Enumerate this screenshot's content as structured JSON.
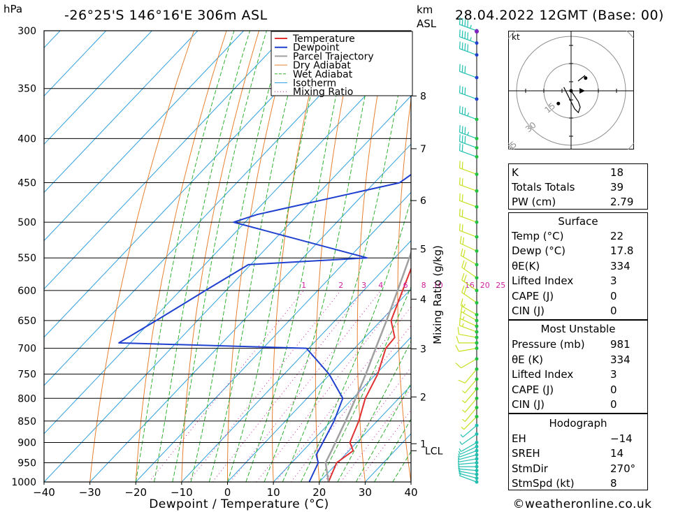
{
  "header": {
    "unit_hpa": "hPa",
    "location": "-26°25'S 146°16'E 306m ASL",
    "km": "km",
    "asl": "ASL",
    "datetime": "28.04.2022 12GMT (Base: 00)"
  },
  "footer": {
    "copyright": "©weatheronline.co.uk"
  },
  "colors": {
    "temperature": "#e03030",
    "dewpoint": "#2040d0",
    "parcel": "#a0a0a0",
    "dry_adiabat": "#e88030",
    "wet_adiabat": "#30b030",
    "isotherm": "#30a0e0",
    "mixing_ratio": "#d020a0",
    "wind_low": "#c8e020",
    "wind_high": "#20c0b0",
    "hodo_marker": "#8020c0"
  },
  "chart_data": {
    "type": "line",
    "xlabel": "Dewpoint / Temperature (°C)",
    "ylabel": "hPa",
    "xlim": [
      -40,
      40
    ],
    "ylim": [
      1000,
      300
    ],
    "y_scale": "log-pressure",
    "skew": "skew-T",
    "x_ticks": [
      -40,
      -30,
      -20,
      -10,
      0,
      10,
      20,
      30,
      40
    ],
    "x_tick_labels": [
      "−40",
      "−30",
      "−20",
      "−10",
      "0",
      "10",
      "20",
      "30",
      "40"
    ],
    "pressure_ticks": [
      300,
      350,
      400,
      450,
      500,
      550,
      600,
      650,
      700,
      750,
      800,
      850,
      900,
      950,
      1000
    ],
    "km_axis": {
      "ticks": [
        "1",
        "2",
        "3",
        "4",
        "5",
        "6",
        "7",
        "8"
      ],
      "pressures": [
        903,
        797,
        701,
        614,
        537,
        472,
        411,
        357
      ],
      "lcl_label": "LCL",
      "lcl_pressure": 920
    },
    "mixing_ratio_axis_label": "Mixing Ratio (g/kg)",
    "mixing_ratio_labels": [
      "1",
      "2",
      "3",
      "4",
      "6",
      "8",
      "10",
      "16",
      "20",
      "25"
    ],
    "legend": {
      "position": "top-right",
      "entries": [
        "Temperature",
        "Dewpoint",
        "Parcel Trajectory",
        "Dry Adiabat",
        "Wet Adiabat",
        "Isotherm",
        "Mixing Ratio"
      ]
    },
    "series": [
      {
        "name": "Temperature",
        "points": [
          [
            1000,
            22
          ],
          [
            950,
            19.8
          ],
          [
            920,
            20.9
          ],
          [
            900,
            18.5
          ],
          [
            850,
            16
          ],
          [
            800,
            12.7
          ],
          [
            750,
            10.4
          ],
          [
            700,
            6.8
          ],
          [
            680,
            6.5
          ],
          [
            650,
            2.2
          ],
          [
            600,
            -1.5
          ],
          [
            550,
            -5.5
          ],
          [
            500,
            -10.5
          ],
          [
            450,
            -16.8
          ],
          [
            420,
            -21.5
          ],
          [
            400,
            -23.8
          ],
          [
            350,
            -32
          ],
          [
            300,
            -40
          ]
        ]
      },
      {
        "name": "Dewpoint",
        "points": [
          [
            1000,
            17.8
          ],
          [
            950,
            15.8
          ],
          [
            930,
            13.7
          ],
          [
            900,
            12.6
          ],
          [
            850,
            10.6
          ],
          [
            800,
            7.8
          ],
          [
            750,
            -0.2
          ],
          [
            700,
            -10.5
          ],
          [
            690,
            -52.5
          ],
          [
            650,
            -49
          ],
          [
            600,
            -44.5
          ],
          [
            560,
            -40.5
          ],
          [
            550,
            -16
          ],
          [
            500,
            -52.5
          ],
          [
            490,
            -49
          ],
          [
            450,
            -24.5
          ],
          [
            430,
            -22.8
          ],
          [
            405,
            -29
          ],
          [
            400,
            -29.5
          ],
          [
            350,
            -33
          ],
          [
            300,
            -48
          ]
        ]
      },
      {
        "name": "Parcel Trajectory",
        "points": [
          [
            1000,
            22
          ],
          [
            950,
            17.4
          ],
          [
            920,
            16.2
          ],
          [
            850,
            13.1
          ],
          [
            800,
            10.6
          ],
          [
            750,
            7.8
          ],
          [
            700,
            4.6
          ],
          [
            650,
            1.2
          ],
          [
            600,
            -2.6
          ],
          [
            550,
            -6.8
          ],
          [
            500,
            -11.6
          ],
          [
            450,
            -17.3
          ],
          [
            400,
            -24.1
          ],
          [
            350,
            -32.3
          ],
          [
            300,
            -42
          ]
        ]
      }
    ],
    "wind_barbs": {
      "units": "kt",
      "pressures": [
        1000,
        990,
        980,
        970,
        960,
        950,
        940,
        930,
        920,
        910,
        900,
        880,
        860,
        840,
        820,
        800,
        780,
        760,
        740,
        720,
        700,
        690,
        680,
        670,
        660,
        650,
        640,
        620,
        600,
        580,
        560,
        540,
        520,
        500,
        480,
        460,
        440,
        420,
        410,
        400,
        380,
        360,
        340,
        320,
        310,
        300
      ],
      "directions": [
        250,
        255,
        260,
        265,
        270,
        275,
        280,
        285,
        290,
        295,
        300,
        305,
        310,
        315,
        320,
        320,
        320,
        320,
        320,
        300,
        280,
        270,
        260,
        250,
        245,
        240,
        240,
        235,
        235,
        235,
        240,
        245,
        250,
        250,
        250,
        250,
        250,
        250,
        250,
        250,
        250,
        250,
        250,
        250,
        250,
        250
      ],
      "speeds": [
        5,
        5,
        5,
        5,
        5,
        5,
        5,
        5,
        5,
        5,
        5,
        5,
        5,
        5,
        5,
        5,
        5,
        5,
        10,
        10,
        10,
        10,
        10,
        15,
        15,
        15,
        15,
        20,
        20,
        20,
        20,
        20,
        20,
        20,
        20,
        20,
        20,
        20,
        30,
        35,
        35,
        30,
        30,
        40,
        45,
        45
      ]
    },
    "hodograph": {
      "unit": "kt",
      "ring_labels": [
        "15",
        "30",
        "45"
      ],
      "trace_u": [
        0,
        2,
        4,
        5,
        4,
        2,
        0,
        -2,
        -4
      ],
      "trace_v": [
        0,
        -3,
        -6,
        -9,
        -12,
        -10,
        -6,
        -2,
        2
      ],
      "points_u": [
        8,
        -7,
        0
      ],
      "points_v": [
        7,
        -7,
        0
      ]
    }
  },
  "indices": {
    "k_label": "K",
    "k": "18",
    "tt_label": "Totals Totals",
    "tt": "39",
    "pw_label": "PW (cm)",
    "pw": "2.79"
  },
  "surface": {
    "title": "Surface",
    "temp_label": "Temp (°C)",
    "temp": "22",
    "dewp_label": "Dewp (°C)",
    "dewp": "17.8",
    "theta_label": "θE(K)",
    "theta": "334",
    "li_label": "Lifted Index",
    "li": "3",
    "cape_label": "CAPE (J)",
    "cape": "0",
    "cin_label": "CIN (J)",
    "cin": "0"
  },
  "most_unstable": {
    "title": "Most Unstable",
    "pressure_label": "Pressure (mb)",
    "pressure": "981",
    "theta_label": "θE (K)",
    "theta": "334",
    "li_label": "Lifted Index",
    "li": "3",
    "cape_label": "CAPE (J)",
    "cape": "0",
    "cin_label": "CIN (J)",
    "cin": "0"
  },
  "hodograph_table": {
    "title": "Hodograph",
    "eh_label": "EH",
    "eh": "−14",
    "sreh_label": "SREH",
    "sreh": "14",
    "stmdir_label": "StmDir",
    "stmdir": "270°",
    "stmspd_label": "StmSpd (kt)",
    "stmspd": "8"
  }
}
